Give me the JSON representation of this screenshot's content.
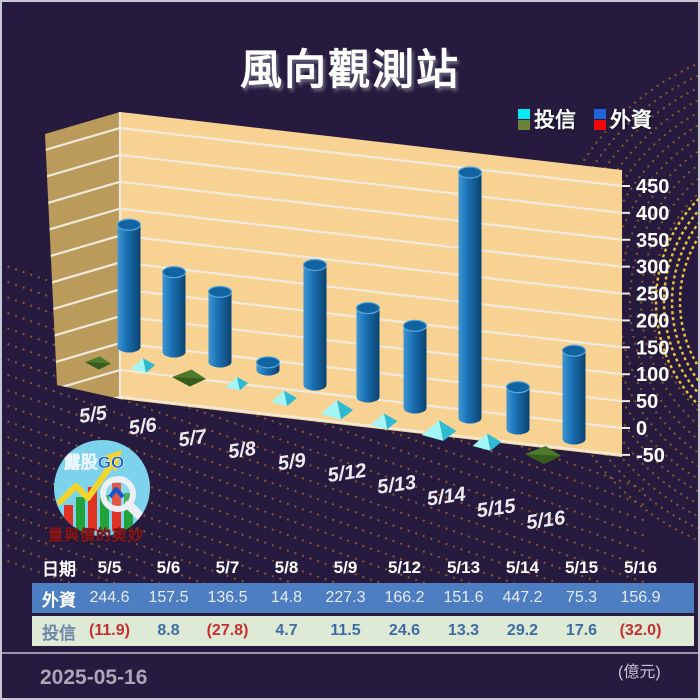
{
  "header": {
    "title": "風向觀測站"
  },
  "legend": {
    "items": [
      {
        "label": "投信",
        "swatch_top": "#06E9F2",
        "swatch_bottom": "#6A8139"
      },
      {
        "label": "外資",
        "swatch_top": "#1E66DC",
        "swatch_bottom": "#F20505"
      }
    ]
  },
  "chart_data": {
    "type": "bar",
    "variant": "3d-cylinder",
    "title": "風向觀測站",
    "categories": [
      "5/5",
      "5/6",
      "5/7",
      "5/8",
      "5/9",
      "5/12",
      "5/13",
      "5/14",
      "5/15",
      "5/16"
    ],
    "series": [
      {
        "name": "外資",
        "marker": "blue-cylinder",
        "values": [
          244.6,
          157.5,
          136.5,
          14.8,
          227.3,
          166.2,
          151.6,
          447.2,
          75.3,
          156.9
        ]
      },
      {
        "name": "投信",
        "marker": "floor-pyramid",
        "values": [
          -11.9,
          8.8,
          -27.8,
          4.7,
          11.5,
          24.6,
          13.3,
          29.2,
          17.6,
          -32.0
        ]
      }
    ],
    "ylim": [
      -50,
      475
    ],
    "yticks": [
      450,
      400,
      350,
      300,
      250,
      200,
      150,
      100,
      50,
      0,
      -50
    ],
    "legend_position": "top-right",
    "grid": true,
    "unit": "億元"
  },
  "table": {
    "header_label": "日期",
    "columns": [
      "5/5",
      "5/6",
      "5/7",
      "5/8",
      "5/9",
      "5/12",
      "5/13",
      "5/14",
      "5/15",
      "5/16"
    ],
    "rows": [
      {
        "label": "外資",
        "values": [
          "244.6",
          "157.5",
          "136.5",
          "14.8",
          "227.3",
          "166.2",
          "151.6",
          "447.2",
          "75.3",
          "156.9"
        ]
      },
      {
        "label": "投信",
        "values": [
          "(11.9)",
          "8.8",
          "(27.8)",
          "4.7",
          "11.5",
          "24.6",
          "13.3",
          "29.2",
          "17.6",
          "(32.0)"
        ]
      }
    ]
  },
  "logo": {
    "badge": "露股GO",
    "caption": "量與價的奧妙"
  },
  "footer": {
    "date": "2025-05-16",
    "unit_note": "(億元)"
  },
  "colors": {
    "background": "#261B3E",
    "wall": "#F8D292",
    "side_wall": "#BA9B5C",
    "gridline": "#F0EADC",
    "bar_light": "#3E96D4",
    "bar_main": "#1B72B6",
    "bar_dark": "#0B4370",
    "bar_top": "#1263A2",
    "bar_top_rim": "#57A8DC",
    "pyramid_light": "#A4F6F6",
    "pyramid_dark": "#2FB9D2",
    "negative_marker": "#4E7A2C",
    "negative_marker_dark": "#385C1E",
    "axis_text": "#FFFFFF",
    "date_label_text": "#EEECF2",
    "row_foreign_bg": "#4D7EC2",
    "row_trust_bg": "#DEE9D6",
    "negative_text": "#C43030",
    "decor_dots": "#A06828",
    "decor_dots_bright": "#F2C83C"
  }
}
